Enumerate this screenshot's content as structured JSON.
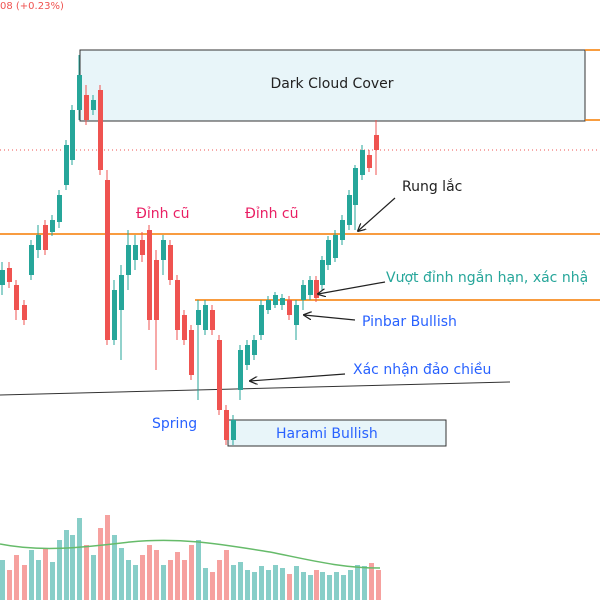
{
  "header": {
    "change": "08 (+0.23%)"
  },
  "annotations": {
    "dark_cloud_cover": "Dark Cloud Cover",
    "rung_lac": "Rung lắc",
    "dinh_cu_1": "Đỉnh cũ",
    "dinh_cu_2": "Đỉnh cũ",
    "vuot_dinh": "Vượt đỉnh ngắn hạn, xác nhậ",
    "pinbar": "Pinbar Bullish",
    "xac_nhan": "Xác nhận đảo chiều",
    "spring": "Spring",
    "harami": "Harami Bullish"
  }
}
